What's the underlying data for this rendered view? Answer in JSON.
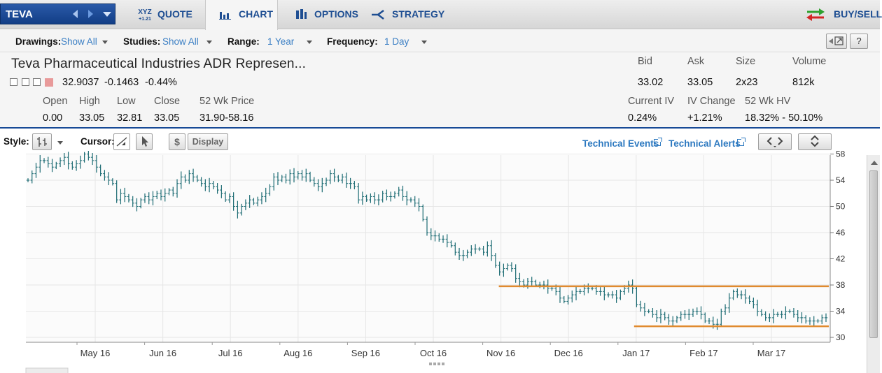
{
  "symbol": "TEVA",
  "nav": {
    "quote_icon_top": "XYZ",
    "quote_icon_bottom": "+1.21",
    "quote": "QUOTE",
    "chart": "CHART",
    "options": "OPTIONS",
    "strategy": "STRATEGY",
    "buysell": "BUY/SELL"
  },
  "toolbar": {
    "drawings_label": "Drawings:",
    "drawings_value": "Show All",
    "studies_label": "Studies:",
    "studies_value": "Show All",
    "range_label": "Range:",
    "range_value": "1 Year",
    "frequency_label": "Frequency:",
    "frequency_value": "1 Day",
    "help_label": "?"
  },
  "quote": {
    "name": "Teva Pharmaceutical Industries ADR Represen...",
    "last": "32.9037",
    "change": "-0.1463",
    "change_pct": "-0.44%",
    "open_label": "Open",
    "open": "0.00",
    "high_label": "High",
    "high": "33.05",
    "low_label": "Low",
    "low": "32.81",
    "close_label": "Close",
    "close": "33.05",
    "wk52_label": "52 Wk Price",
    "wk52": "31.90-58.16",
    "bid_label": "Bid",
    "bid": "33.02",
    "ask_label": "Ask",
    "ask": "33.05",
    "size_label": "Size",
    "size": "2x23",
    "volume_label": "Volume",
    "volume": "812k",
    "iv_label": "Current IV",
    "iv": "0.24%",
    "ivchg_label": "IV Change",
    "ivchg": "+1.21%",
    "hv_label": "52 Wk HV",
    "hv": "18.32% - 50.10%"
  },
  "style_row": {
    "style_label": "Style:",
    "cursor_label": "Cursor:",
    "dollar_label": "$",
    "display_label": "Display",
    "tech_events": "Technical Events",
    "tech_alerts": "Technical Alerts"
  },
  "colors": {
    "bars": "#1c6b73",
    "support_lines": "#e08a2e",
    "accent": "#174a96"
  },
  "chart_data": {
    "type": "ohlc-bar",
    "x_ticks": [
      "May 16",
      "Jun 16",
      "Jul 16",
      "Aug 16",
      "Sep 16",
      "Oct 16",
      "Nov 16",
      "Dec 16",
      "Jan 17",
      "Feb 17",
      "Mar 17"
    ],
    "y_ticks": [
      30,
      34,
      38,
      42,
      46,
      50,
      54,
      58
    ],
    "ylim": [
      29,
      58.4
    ],
    "closes": [
      54,
      55,
      56,
      57,
      57,
      56.5,
      56,
      56.5,
      57,
      57.5,
      56.5,
      56,
      56.5,
      57,
      58,
      57.5,
      57,
      56,
      55,
      54.5,
      54,
      53.5,
      51,
      52,
      51.5,
      51,
      50.5,
      50,
      51,
      51.5,
      51,
      51.5,
      52,
      51.5,
      52,
      52.5,
      52,
      53.5,
      54.5,
      54,
      55,
      54.5,
      54,
      53.5,
      53,
      53.5,
      53,
      52.5,
      52,
      51,
      51.5,
      50,
      49,
      50,
      50.5,
      51,
      50.5,
      51,
      51.5,
      52,
      53,
      54.5,
      54,
      54.5,
      54,
      55,
      54.5,
      55,
      54.5,
      55,
      54,
      53.5,
      53,
      53.5,
      54,
      55,
      54.5,
      54,
      54.5,
      53.5,
      53.5,
      53,
      51,
      51.5,
      51,
      51.5,
      51,
      51,
      52,
      51.5,
      51.5,
      52,
      52.5,
      51.5,
      51,
      51,
      50.5,
      50,
      48,
      46,
      45.5,
      45.5,
      45,
      45,
      44.5,
      44,
      43,
      42.5,
      42.5,
      43,
      43.5,
      43.5,
      43.5,
      43,
      44,
      42.5,
      41,
      40,
      40.5,
      41,
      40.5,
      39,
      38.5,
      38,
      38.5,
      38.5,
      38,
      38,
      38,
      37.5,
      37.5,
      37,
      36,
      35.5,
      36,
      36.5,
      37,
      37,
      37.5,
      37.5,
      37.5,
      37,
      37,
      36.5,
      36.5,
      36.5,
      36,
      37,
      37.5,
      38,
      37.5,
      35,
      34.5,
      34,
      34,
      33.5,
      33,
      33.5,
      33,
      32.5,
      32.5,
      33,
      33.5,
      33.5,
      33.5,
      34,
      34,
      33.5,
      32.5,
      32.5,
      32,
      32,
      34,
      34.5,
      36,
      37,
      36.5,
      36.5,
      36,
      35.5,
      35,
      34,
      33.5,
      33,
      33,
      33.5,
      33.5,
      33.5,
      34,
      34,
      33.5,
      33,
      33,
      32.5,
      32.5,
      32.5,
      32.5,
      33,
      33
    ],
    "support_lines": [
      {
        "y": 37.8,
        "from": "Nov 16",
        "to": "end"
      },
      {
        "y": 31.7,
        "from": "Jan 17",
        "to": "end"
      }
    ]
  }
}
